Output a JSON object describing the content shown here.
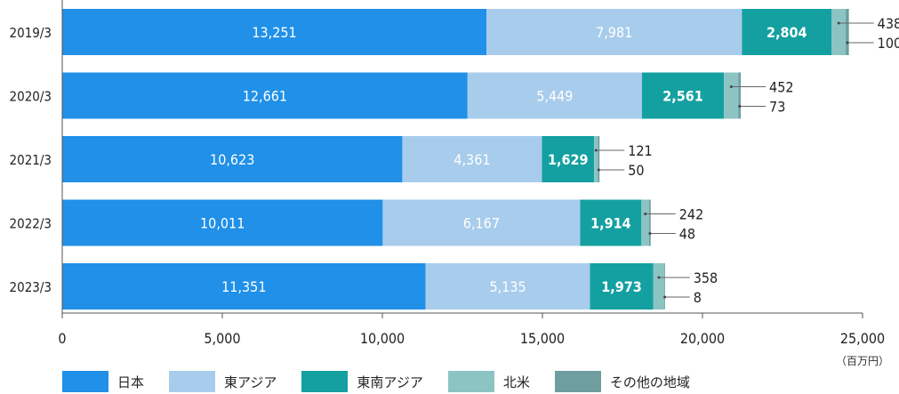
{
  "chart_data": {
    "type": "bar",
    "orientation": "horizontal",
    "stacked": true,
    "categories": [
      "2019/3",
      "2020/3",
      "2021/3",
      "2022/3",
      "2023/3"
    ],
    "series": [
      {
        "name": "日本",
        "color": "#2090e8",
        "values": [
          13251,
          12661,
          10623,
          10011,
          11351
        ]
      },
      {
        "name": "東アジア",
        "color": "#a8ccec",
        "values": [
          7981,
          5449,
          4361,
          6167,
          5135
        ]
      },
      {
        "name": "東南アジア",
        "color": "#14a0a0",
        "values": [
          2804,
          2561,
          1629,
          1914,
          1973
        ]
      },
      {
        "name": "北米",
        "color": "#8cc4c4",
        "values": [
          438,
          452,
          121,
          242,
          358
        ]
      },
      {
        "name": "その他の地域",
        "color": "#6e9ea0",
        "values": [
          100,
          73,
          50,
          48,
          8
        ]
      }
    ],
    "xlim": [
      0,
      25000
    ],
    "xticks": [
      0,
      5000,
      10000,
      15000,
      20000,
      25000
    ],
    "xtick_labels": [
      "0",
      "5,000",
      "10,000",
      "15,000",
      "20,000",
      "25,000"
    ],
    "value_labels": [
      [
        "13,251",
        "7,981",
        "2,804",
        "438",
        "100"
      ],
      [
        "12,661",
        "5,449",
        "2,561",
        "452",
        "73"
      ],
      [
        "10,623",
        "4,361",
        "1,629",
        "121",
        "50"
      ],
      [
        "10,011",
        "6,167",
        "1,914",
        "242",
        "48"
      ],
      [
        "11,351",
        "5,135",
        "1,973",
        "358",
        "8"
      ]
    ],
    "unit_label": "（百万円）",
    "legend_position": "bottom"
  }
}
